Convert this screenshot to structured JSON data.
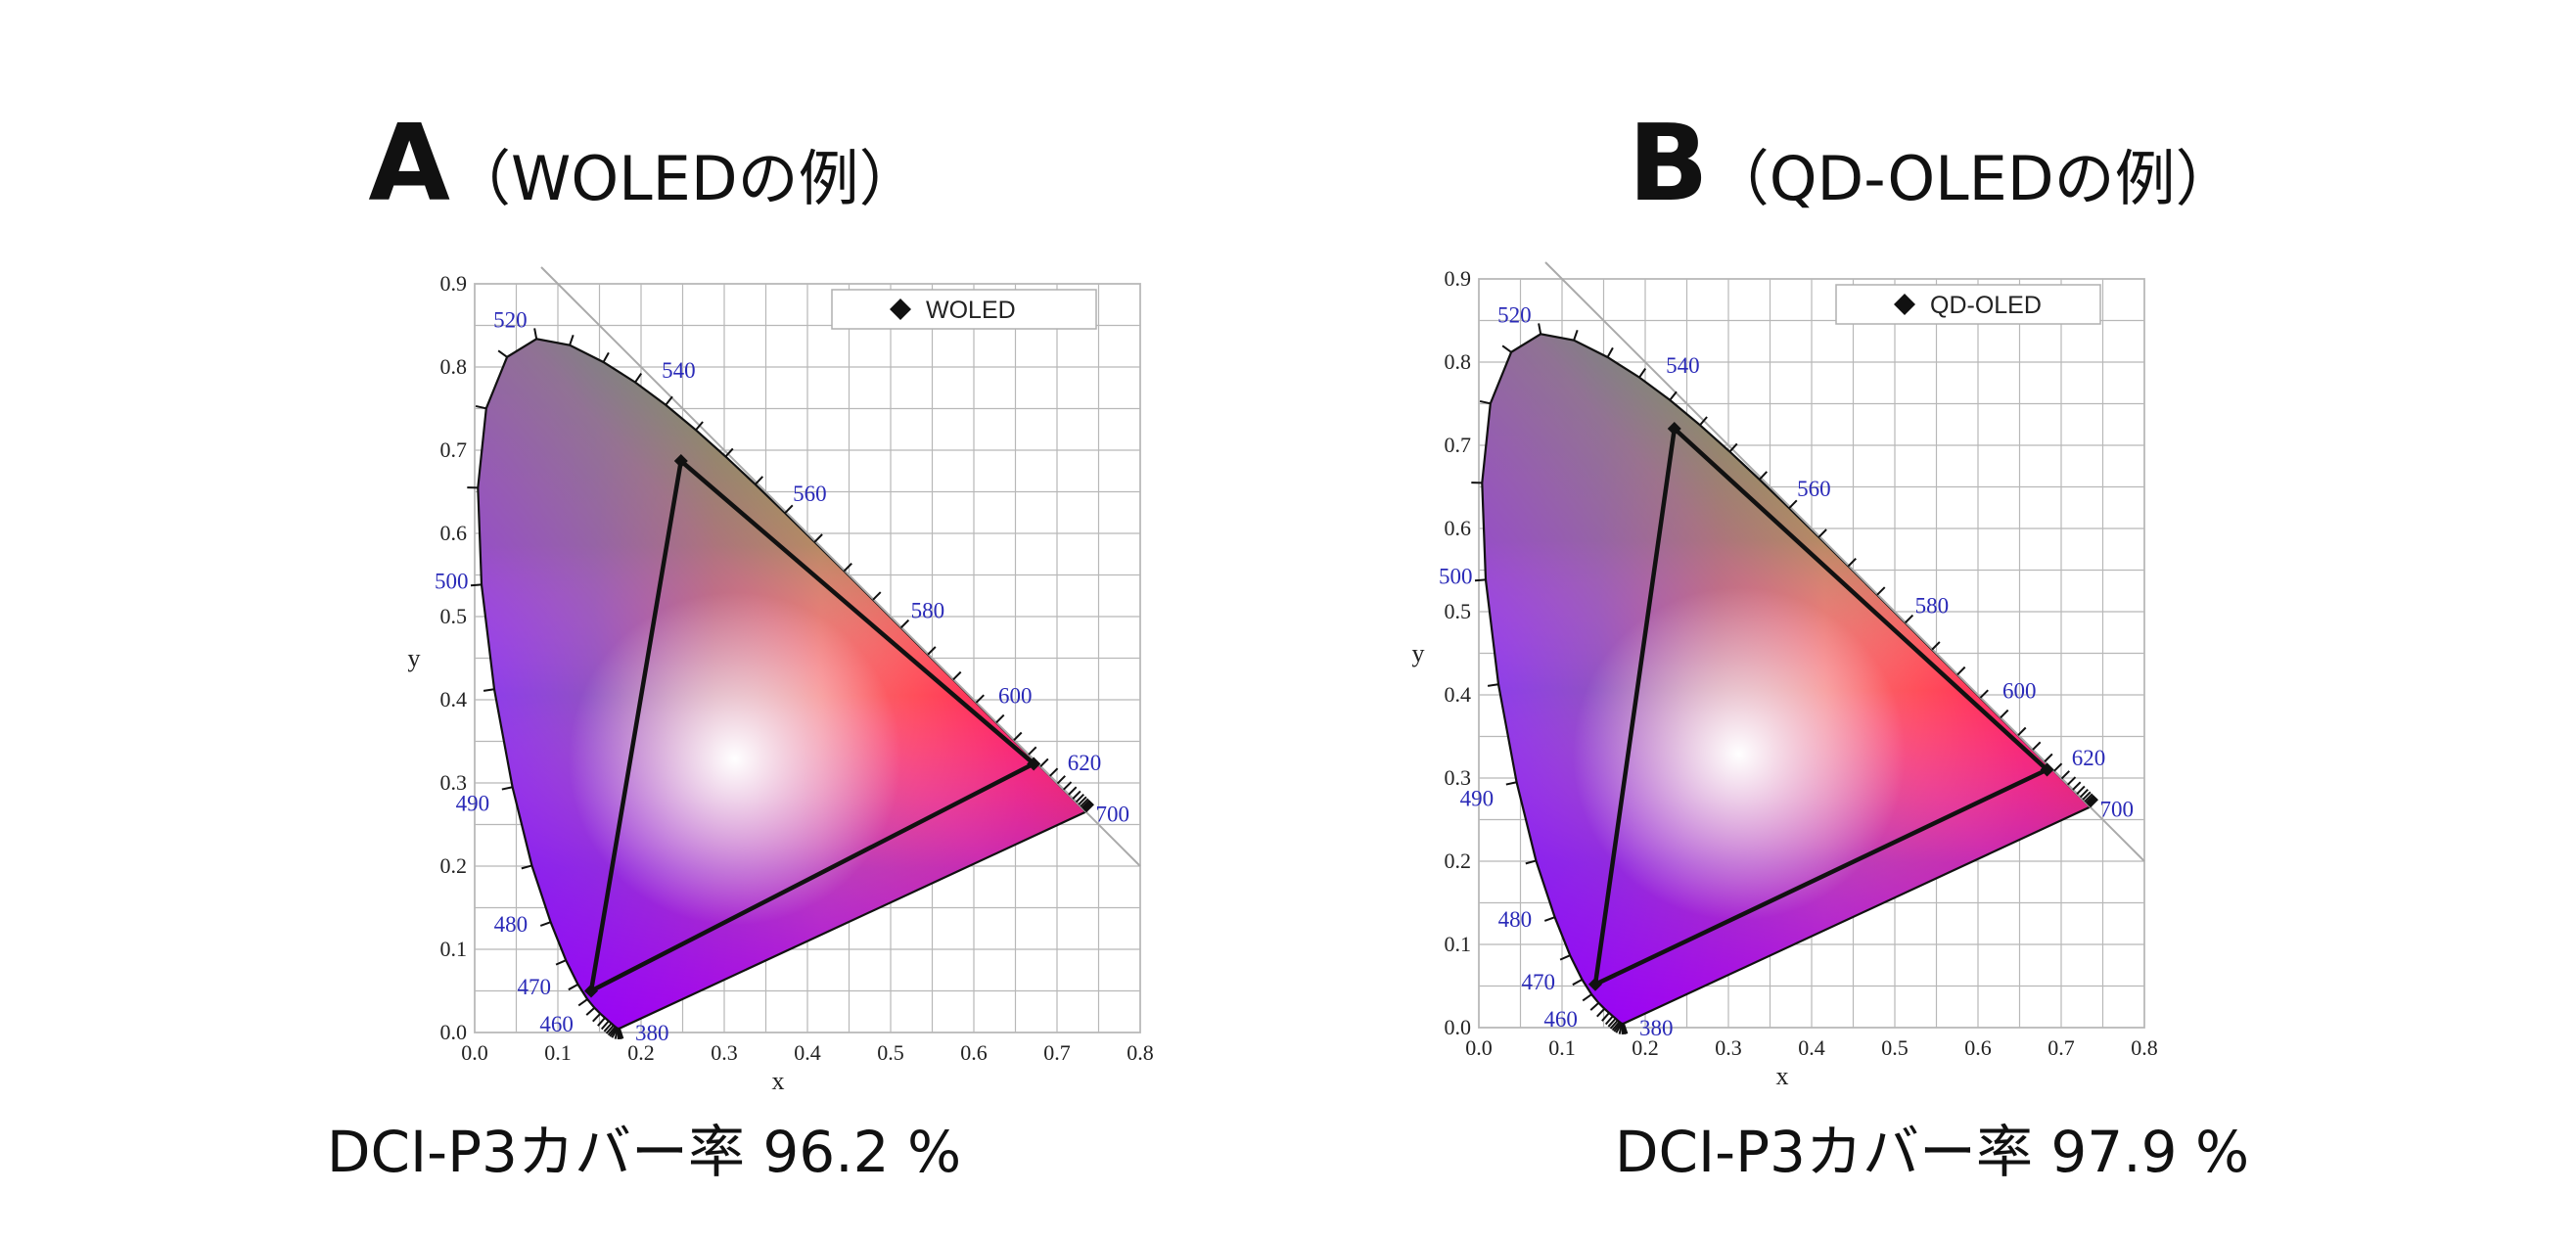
{
  "panels": [
    {
      "title_letter": "A",
      "title_rest": "（WOLEDの例）",
      "caption": "DCI-P3カバー率 96.2 %"
    },
    {
      "title_letter": "B",
      "title_rest": "（QD-OLEDの例）",
      "caption": "DCI-P3カバー率 97.9 %"
    }
  ],
  "chart_data": [
    {
      "type": "scatter",
      "title": "",
      "xlabel": "x",
      "ylabel": "y",
      "xlim": [
        0.0,
        0.8
      ],
      "ylim": [
        0.0,
        0.9
      ],
      "x_ticks": [
        "0.0",
        "0.1",
        "0.2",
        "0.3",
        "0.4",
        "0.5",
        "0.6",
        "0.7",
        "0.8"
      ],
      "y_ticks": [
        "0.0",
        "0.1",
        "0.2",
        "0.3",
        "0.4",
        "0.5",
        "0.6",
        "0.7",
        "0.8",
        "0.9"
      ],
      "grid": true,
      "legend_position": "top-right",
      "series": [
        {
          "name": "WOLED",
          "marker": "diamond",
          "x": [
            0.248,
            0.672,
            0.14
          ],
          "y": [
            0.687,
            0.323,
            0.05
          ]
        }
      ],
      "spectral_locus_labels": [
        {
          "nm": "380",
          "x": 0.1741,
          "y": 0.005
        },
        {
          "nm": "460",
          "x": 0.144,
          "y": 0.0297
        },
        {
          "nm": "470",
          "x": 0.1241,
          "y": 0.0578
        },
        {
          "nm": "480",
          "x": 0.0913,
          "y": 0.1327
        },
        {
          "nm": "490",
          "x": 0.0454,
          "y": 0.295
        },
        {
          "nm": "500",
          "x": 0.0082,
          "y": 0.5384
        },
        {
          "nm": "520",
          "x": 0.0743,
          "y": 0.8338
        },
        {
          "nm": "540",
          "x": 0.2296,
          "y": 0.7543
        },
        {
          "nm": "560",
          "x": 0.3731,
          "y": 0.6245
        },
        {
          "nm": "580",
          "x": 0.5125,
          "y": 0.4866
        },
        {
          "nm": "600",
          "x": 0.627,
          "y": 0.3725
        },
        {
          "nm": "620",
          "x": 0.6915,
          "y": 0.3083
        },
        {
          "nm": "700",
          "x": 0.7347,
          "y": 0.2653
        }
      ]
    },
    {
      "type": "scatter",
      "title": "",
      "xlabel": "x",
      "ylabel": "y",
      "xlim": [
        0.0,
        0.8
      ],
      "ylim": [
        0.0,
        0.9
      ],
      "x_ticks": [
        "0.0",
        "0.1",
        "0.2",
        "0.3",
        "0.4",
        "0.5",
        "0.6",
        "0.7",
        "0.8"
      ],
      "y_ticks": [
        "0.0",
        "0.1",
        "0.2",
        "0.3",
        "0.4",
        "0.5",
        "0.6",
        "0.7",
        "0.8",
        "0.9"
      ],
      "grid": true,
      "legend_position": "top-right",
      "series": [
        {
          "name": "QD-OLED",
          "marker": "diamond",
          "x": [
            0.235,
            0.683,
            0.14
          ],
          "y": [
            0.72,
            0.31,
            0.052
          ]
        }
      ],
      "spectral_locus_labels": [
        {
          "nm": "380",
          "x": 0.1741,
          "y": 0.005
        },
        {
          "nm": "460",
          "x": 0.144,
          "y": 0.0297
        },
        {
          "nm": "470",
          "x": 0.1241,
          "y": 0.0578
        },
        {
          "nm": "480",
          "x": 0.0913,
          "y": 0.1327
        },
        {
          "nm": "490",
          "x": 0.0454,
          "y": 0.295
        },
        {
          "nm": "500",
          "x": 0.0082,
          "y": 0.5384
        },
        {
          "nm": "520",
          "x": 0.0743,
          "y": 0.8338
        },
        {
          "nm": "540",
          "x": 0.2296,
          "y": 0.7543
        },
        {
          "nm": "560",
          "x": 0.3731,
          "y": 0.6245
        },
        {
          "nm": "580",
          "x": 0.5125,
          "y": 0.4866
        },
        {
          "nm": "600",
          "x": 0.627,
          "y": 0.3725
        },
        {
          "nm": "620",
          "x": 0.6915,
          "y": 0.3083
        },
        {
          "nm": "700",
          "x": 0.7347,
          "y": 0.2653
        }
      ]
    }
  ]
}
